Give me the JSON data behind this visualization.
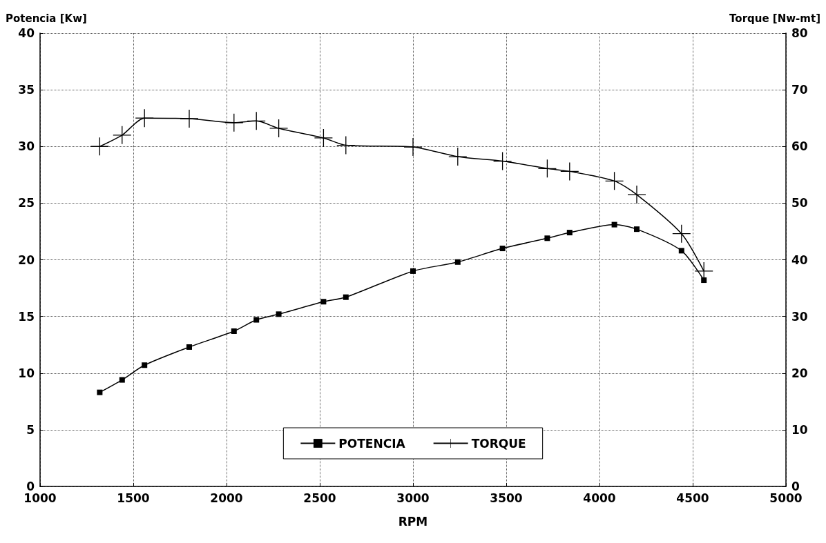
{
  "chart_data": {
    "type": "line",
    "xlabel": "RPM",
    "ylabel": "Potencia [Kw]",
    "y2label": "Torque [Nw-mt]",
    "x": [
      1320,
      1440,
      1560,
      1800,
      2040,
      2160,
      2280,
      2520,
      2640,
      3000,
      3240,
      3480,
      3720,
      3840,
      4080,
      4200,
      4440,
      4560
    ],
    "series": [
      {
        "name": "POTENCIA",
        "color": "#000000",
        "marker": "square",
        "values": [
          8.3,
          9.4,
          10.7,
          12.3,
          13.7,
          14.7,
          15.2,
          16.3,
          16.7,
          19.0,
          19.8,
          21.0,
          21.9,
          22.4,
          23.1,
          22.7,
          20.8,
          18.2
        ]
      },
      {
        "name": "TORQUE",
        "color": "#000000",
        "marker": "cross",
        "axis": "y2",
        "values": [
          60.0,
          62.0,
          65.0,
          64.9,
          64.2,
          64.5,
          63.2,
          61.5,
          60.2,
          59.9,
          58.2,
          57.4,
          56.1,
          55.6,
          53.9,
          51.5,
          44.6,
          38.0
        ]
      }
    ],
    "xlim": [
      1000,
      5000
    ],
    "xticks": [
      1000,
      1500,
      2000,
      2500,
      3000,
      3500,
      4000,
      4500,
      5000
    ],
    "ylim": [
      0,
      40
    ],
    "yticks": [
      0,
      5,
      10,
      15,
      20,
      25,
      30,
      35,
      40
    ],
    "y2lim": [
      0,
      80
    ],
    "y2ticks": [
      0,
      10,
      20,
      30,
      40,
      50,
      60,
      70,
      80
    ],
    "grid": true,
    "legend": "bottom",
    "line_style": "solid"
  }
}
